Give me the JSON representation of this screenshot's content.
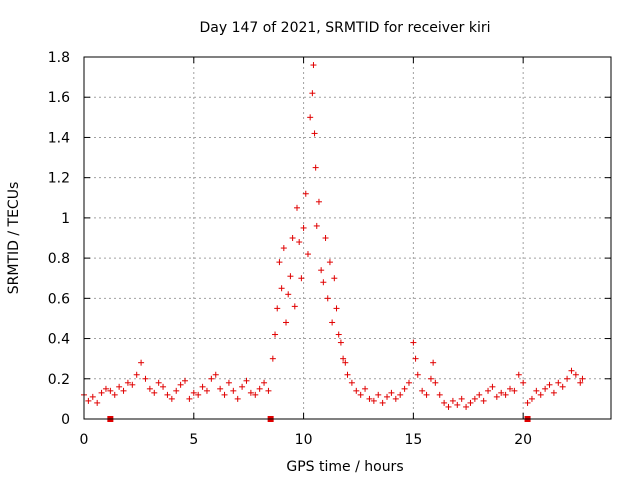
{
  "chart_data": {
    "type": "scatter",
    "title": "Day 147 of 2021, SRMTID for receiver kiri",
    "xlabel": "GPS time / hours",
    "ylabel": "SRMTID / TECUs",
    "xlim": [
      0,
      24
    ],
    "ylim": [
      0,
      1.8
    ],
    "xticks": [
      0,
      5,
      10,
      15,
      20
    ],
    "yticks": [
      0,
      0.2,
      0.4,
      0.6,
      0.8,
      1,
      1.2,
      1.4,
      1.6,
      1.8
    ],
    "xtick_labels": [
      "0",
      "5",
      "10",
      "15",
      "20"
    ],
    "ytick_labels": [
      "0",
      "0.2",
      "0.4",
      "0.6",
      "0.8",
      "1",
      "1.2",
      "1.4",
      "1.6",
      "1.8"
    ],
    "grid": true,
    "marker": "+",
    "color": "#e00000",
    "data_gap_markers_x": [
      1.2,
      8.5,
      20.2
    ],
    "series": [
      {
        "name": "SRMTID",
        "x": [
          0.0,
          0.2,
          0.4,
          0.6,
          0.8,
          1.0,
          1.2,
          1.4,
          1.6,
          1.8,
          2.0,
          2.2,
          2.4,
          2.6,
          2.8,
          3.0,
          3.2,
          3.4,
          3.6,
          3.8,
          4.0,
          4.2,
          4.4,
          4.6,
          4.8,
          5.0,
          5.2,
          5.4,
          5.6,
          5.8,
          6.0,
          6.2,
          6.4,
          6.6,
          6.8,
          7.0,
          7.2,
          7.4,
          7.6,
          7.8,
          8.0,
          8.2,
          8.4,
          8.6,
          8.7,
          8.8,
          8.9,
          9.0,
          9.1,
          9.2,
          9.3,
          9.4,
          9.5,
          9.6,
          9.7,
          9.8,
          9.9,
          10.0,
          10.1,
          10.2,
          10.3,
          10.4,
          10.45,
          10.5,
          10.55,
          10.6,
          10.7,
          10.8,
          10.9,
          11.0,
          11.1,
          11.2,
          11.3,
          11.4,
          11.5,
          11.6,
          11.7,
          11.8,
          11.9,
          12.0,
          12.2,
          12.4,
          12.6,
          12.8,
          13.0,
          13.2,
          13.4,
          13.6,
          13.8,
          14.0,
          14.2,
          14.4,
          14.6,
          14.8,
          15.0,
          15.1,
          15.2,
          15.4,
          15.6,
          15.8,
          15.9,
          16.0,
          16.2,
          16.4,
          16.6,
          16.8,
          17.0,
          17.2,
          17.4,
          17.6,
          17.8,
          18.0,
          18.2,
          18.4,
          18.6,
          18.8,
          19.0,
          19.2,
          19.4,
          19.6,
          19.8,
          20.0,
          20.2,
          20.4,
          20.6,
          20.8,
          21.0,
          21.2,
          21.4,
          21.6,
          21.8,
          22.0,
          22.2,
          22.4,
          22.6,
          22.7
        ],
        "y": [
          0.12,
          0.09,
          0.11,
          0.08,
          0.13,
          0.15,
          0.14,
          0.12,
          0.16,
          0.14,
          0.18,
          0.17,
          0.22,
          0.28,
          0.2,
          0.15,
          0.13,
          0.18,
          0.16,
          0.12,
          0.1,
          0.14,
          0.17,
          0.19,
          0.1,
          0.13,
          0.12,
          0.16,
          0.14,
          0.2,
          0.22,
          0.15,
          0.12,
          0.18,
          0.14,
          0.1,
          0.16,
          0.19,
          0.13,
          0.12,
          0.15,
          0.18,
          0.14,
          0.3,
          0.42,
          0.55,
          0.78,
          0.65,
          0.85,
          0.48,
          0.62,
          0.71,
          0.9,
          0.56,
          1.05,
          0.88,
          0.7,
          0.95,
          1.12,
          0.82,
          1.5,
          1.62,
          1.76,
          1.42,
          1.25,
          0.96,
          1.08,
          0.74,
          0.68,
          0.9,
          0.6,
          0.78,
          0.48,
          0.7,
          0.55,
          0.42,
          0.38,
          0.3,
          0.28,
          0.22,
          0.18,
          0.14,
          0.12,
          0.15,
          0.1,
          0.09,
          0.12,
          0.08,
          0.11,
          0.13,
          0.1,
          0.12,
          0.15,
          0.18,
          0.38,
          0.3,
          0.22,
          0.14,
          0.12,
          0.2,
          0.28,
          0.18,
          0.12,
          0.08,
          0.06,
          0.09,
          0.07,
          0.1,
          0.06,
          0.08,
          0.1,
          0.12,
          0.09,
          0.14,
          0.16,
          0.11,
          0.13,
          0.12,
          0.15,
          0.14,
          0.22,
          0.18,
          0.08,
          0.1,
          0.14,
          0.12,
          0.15,
          0.17,
          0.13,
          0.18,
          0.16,
          0.2,
          0.24,
          0.22,
          0.18,
          0.2
        ]
      }
    ]
  }
}
